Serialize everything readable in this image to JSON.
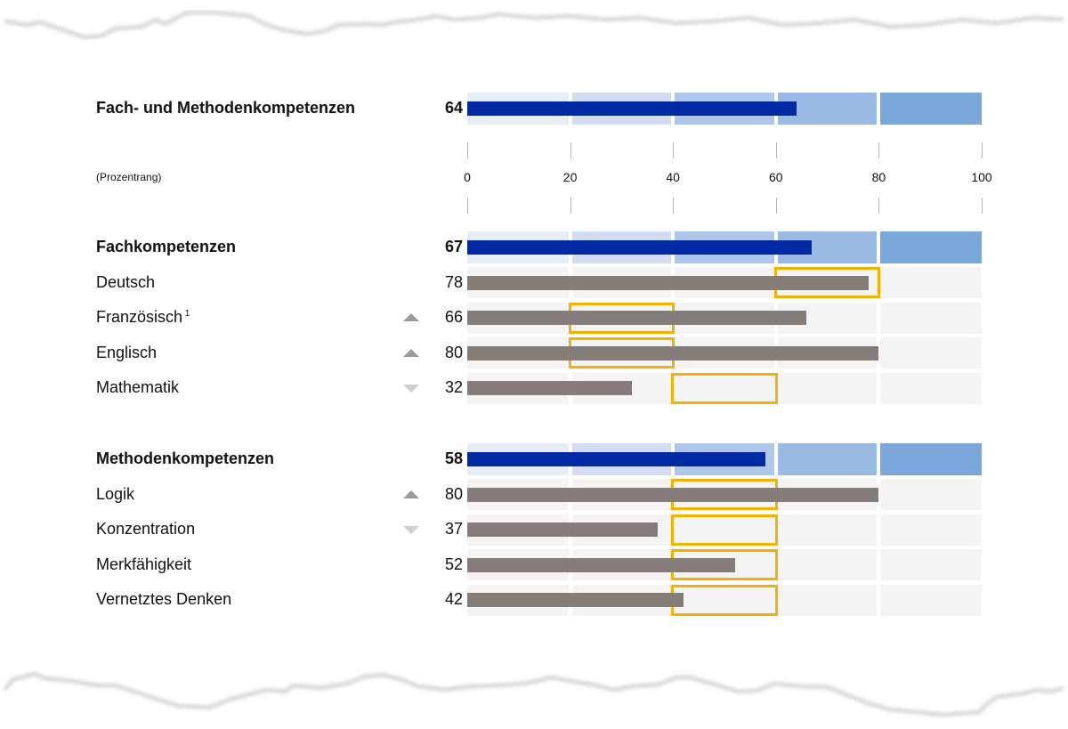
{
  "chart_data": {
    "type": "bar",
    "orientation": "horizontal",
    "unit_label": "(Prozentrang)",
    "xlim": [
      0,
      100
    ],
    "x_ticks": [
      0,
      20,
      40,
      60,
      80,
      100
    ],
    "colors": {
      "summary_bar": "#0029a3",
      "detail_bar": "#857d7a",
      "reference_box": "#f5b000",
      "summary_bands": [
        "#e6ecf8",
        "#d2dcf2",
        "#adc6ea",
        "#9abae3",
        "#7ba7da"
      ],
      "detail_band": "#f4f4f4"
    },
    "groups": [
      {
        "rows": [
          {
            "label": "Fach- und Methodenkompetenzen",
            "value": 64,
            "summary": true
          }
        ]
      },
      {
        "rows": [
          {
            "label": "Fachkompetenzen",
            "value": 67,
            "summary": true
          },
          {
            "label": "Deutsch",
            "value": 78,
            "trend": "none",
            "reference_range": [
              60,
              80
            ]
          },
          {
            "label": "Französisch",
            "footnote": "1",
            "value": 66,
            "trend": "up",
            "reference_range": [
              20,
              40
            ]
          },
          {
            "label": "Englisch",
            "value": 80,
            "trend": "up",
            "reference_range": [
              20,
              40
            ]
          },
          {
            "label": "Mathematik",
            "value": 32,
            "trend": "down",
            "reference_range": [
              40,
              60
            ]
          }
        ]
      },
      {
        "rows": [
          {
            "label": "Methodenkompetenzen",
            "value": 58,
            "summary": true
          },
          {
            "label": "Logik",
            "value": 80,
            "trend": "up",
            "reference_range": [
              40,
              60
            ]
          },
          {
            "label": "Konzentration",
            "value": 37,
            "trend": "down",
            "reference_range": [
              40,
              60
            ]
          },
          {
            "label": "Merkfähigkeit",
            "value": 52,
            "trend": "none",
            "reference_range": [
              40,
              60
            ]
          },
          {
            "label": "Vernetztes Denken",
            "value": 42,
            "trend": "none",
            "reference_range": [
              40,
              60
            ]
          }
        ]
      }
    ]
  }
}
